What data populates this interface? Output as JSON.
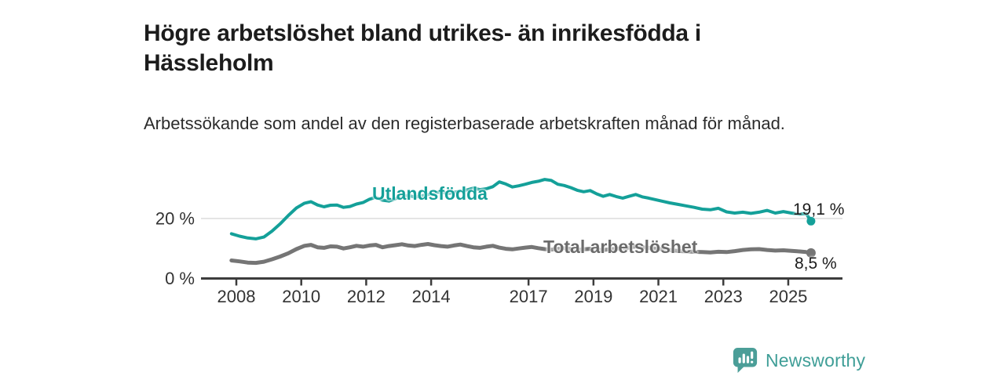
{
  "header": {
    "title": "Högre arbetslöshet bland utrikes- än inrikesfödda i Hässleholm",
    "subtitle": "Arbetssökande som andel av den registerbaserade arbetskraften månad för månad."
  },
  "chart_data": {
    "type": "line",
    "title": "Högre arbetslöshet bland utrikes- än inrikesfödda i Hässleholm",
    "subtitle": "Arbetssökande som andel av den registerbaserade arbetskraften månad för månad.",
    "unit": "%",
    "ylim": [
      0,
      35
    ],
    "grid": "horizontal-at-20-only",
    "legend_position": "inline-labels-on-lines",
    "y_axis": {
      "ticks": [
        {
          "value": 0,
          "label": "0 %"
        },
        {
          "value": 20,
          "label": "20 %"
        }
      ]
    },
    "x_axis": {
      "ticks": [
        {
          "year": 2008,
          "label": "2008"
        },
        {
          "year": 2010,
          "label": "2010"
        },
        {
          "year": 2012,
          "label": "2012"
        },
        {
          "year": 2014,
          "label": "2014"
        },
        {
          "year": 2017,
          "label": "2017"
        },
        {
          "year": 2019,
          "label": "2019"
        },
        {
          "year": 2021,
          "label": "2021"
        },
        {
          "year": 2023,
          "label": "2023"
        },
        {
          "year": 2025,
          "label": "2025"
        }
      ]
    },
    "series": [
      {
        "name": "Utlandsfödda",
        "color": "#14a099",
        "end_label": "19,1 %",
        "end_value": 19.1,
        "points": [
          [
            2007.85,
            14.9
          ],
          [
            2008.1,
            14.1
          ],
          [
            2008.35,
            13.5
          ],
          [
            2008.6,
            13.2
          ],
          [
            2008.85,
            13.8
          ],
          [
            2009.1,
            15.8
          ],
          [
            2009.35,
            18.2
          ],
          [
            2009.6,
            21.0
          ],
          [
            2009.85,
            23.5
          ],
          [
            2010.1,
            25.1
          ],
          [
            2010.3,
            25.6
          ],
          [
            2010.5,
            24.5
          ],
          [
            2010.7,
            23.9
          ],
          [
            2010.9,
            24.4
          ],
          [
            2011.1,
            24.5
          ],
          [
            2011.3,
            23.7
          ],
          [
            2011.5,
            24.0
          ],
          [
            2011.7,
            24.8
          ],
          [
            2011.9,
            25.3
          ],
          [
            2012.1,
            26.4
          ],
          [
            2012.3,
            27.1
          ],
          [
            2012.5,
            26.1
          ],
          [
            2012.7,
            25.8
          ],
          [
            2012.9,
            26.6
          ],
          [
            2013.1,
            27.2
          ],
          [
            2013.3,
            27.7
          ],
          [
            2013.5,
            27.1
          ],
          [
            2013.7,
            27.5
          ],
          [
            2013.9,
            28.0
          ],
          [
            2014.1,
            28.5
          ],
          [
            2014.3,
            28.9
          ],
          [
            2014.5,
            28.3
          ],
          [
            2014.7,
            28.7
          ],
          [
            2014.9,
            29.1
          ],
          [
            2015.1,
            29.5
          ],
          [
            2015.3,
            30.1
          ],
          [
            2015.5,
            29.6
          ],
          [
            2015.7,
            29.9
          ],
          [
            2015.9,
            30.6
          ],
          [
            2016.1,
            32.2
          ],
          [
            2016.3,
            31.5
          ],
          [
            2016.5,
            30.5
          ],
          [
            2016.7,
            30.9
          ],
          [
            2016.9,
            31.4
          ],
          [
            2017.1,
            32.0
          ],
          [
            2017.3,
            32.4
          ],
          [
            2017.5,
            33.0
          ],
          [
            2017.7,
            32.7
          ],
          [
            2017.9,
            31.4
          ],
          [
            2018.1,
            31.0
          ],
          [
            2018.3,
            30.3
          ],
          [
            2018.5,
            29.4
          ],
          [
            2018.7,
            28.9
          ],
          [
            2018.9,
            29.3
          ],
          [
            2019.1,
            28.2
          ],
          [
            2019.3,
            27.4
          ],
          [
            2019.5,
            28.0
          ],
          [
            2019.7,
            27.3
          ],
          [
            2019.9,
            26.8
          ],
          [
            2020.1,
            27.4
          ],
          [
            2020.3,
            28.0
          ],
          [
            2020.5,
            27.2
          ],
          [
            2020.7,
            26.8
          ],
          [
            2020.9,
            26.3
          ],
          [
            2021.1,
            25.8
          ],
          [
            2021.35,
            25.2
          ],
          [
            2021.6,
            24.7
          ],
          [
            2021.85,
            24.2
          ],
          [
            2022.1,
            23.7
          ],
          [
            2022.35,
            23.1
          ],
          [
            2022.6,
            22.9
          ],
          [
            2022.85,
            23.4
          ],
          [
            2023.1,
            22.2
          ],
          [
            2023.35,
            21.8
          ],
          [
            2023.6,
            22.1
          ],
          [
            2023.85,
            21.7
          ],
          [
            2024.1,
            22.1
          ],
          [
            2024.35,
            22.7
          ],
          [
            2024.6,
            21.8
          ],
          [
            2024.85,
            22.3
          ],
          [
            2025.1,
            21.8
          ],
          [
            2025.35,
            21.4
          ],
          [
            2025.55,
            21.7
          ],
          [
            2025.7,
            19.1
          ]
        ]
      },
      {
        "name": "Total arbetslöshet",
        "color": "#757575",
        "end_label": "8,5 %",
        "end_value": 8.5,
        "points": [
          [
            2007.85,
            6.0
          ],
          [
            2008.1,
            5.7
          ],
          [
            2008.35,
            5.3
          ],
          [
            2008.6,
            5.2
          ],
          [
            2008.85,
            5.6
          ],
          [
            2009.1,
            6.4
          ],
          [
            2009.35,
            7.3
          ],
          [
            2009.6,
            8.4
          ],
          [
            2009.85,
            9.8
          ],
          [
            2010.1,
            10.9
          ],
          [
            2010.3,
            11.2
          ],
          [
            2010.5,
            10.4
          ],
          [
            2010.7,
            10.2
          ],
          [
            2010.9,
            10.7
          ],
          [
            2011.1,
            10.6
          ],
          [
            2011.3,
            10.0
          ],
          [
            2011.5,
            10.4
          ],
          [
            2011.7,
            10.9
          ],
          [
            2011.9,
            10.6
          ],
          [
            2012.1,
            11.0
          ],
          [
            2012.3,
            11.2
          ],
          [
            2012.5,
            10.4
          ],
          [
            2012.7,
            10.8
          ],
          [
            2012.9,
            11.1
          ],
          [
            2013.1,
            11.4
          ],
          [
            2013.3,
            11.0
          ],
          [
            2013.5,
            10.8
          ],
          [
            2013.7,
            11.2
          ],
          [
            2013.9,
            11.5
          ],
          [
            2014.1,
            11.1
          ],
          [
            2014.3,
            10.8
          ],
          [
            2014.5,
            10.6
          ],
          [
            2014.7,
            11.0
          ],
          [
            2014.9,
            11.3
          ],
          [
            2015.1,
            10.8
          ],
          [
            2015.3,
            10.4
          ],
          [
            2015.5,
            10.2
          ],
          [
            2015.7,
            10.6
          ],
          [
            2015.9,
            10.9
          ],
          [
            2016.1,
            10.3
          ],
          [
            2016.3,
            9.9
          ],
          [
            2016.5,
            9.7
          ],
          [
            2016.7,
            10.0
          ],
          [
            2016.9,
            10.3
          ],
          [
            2017.1,
            10.5
          ],
          [
            2017.3,
            10.1
          ],
          [
            2017.5,
            9.8
          ],
          [
            2017.7,
            9.6
          ],
          [
            2017.9,
            9.9
          ],
          [
            2018.1,
            10.1
          ],
          [
            2018.3,
            9.8
          ],
          [
            2018.5,
            9.5
          ],
          [
            2018.7,
            9.7
          ],
          [
            2018.9,
            9.9
          ],
          [
            2019.1,
            9.7
          ],
          [
            2019.3,
            9.5
          ],
          [
            2019.5,
            9.7
          ],
          [
            2019.7,
            9.9
          ],
          [
            2019.9,
            10.0
          ],
          [
            2020.1,
            10.3
          ],
          [
            2020.3,
            10.7
          ],
          [
            2020.5,
            10.4
          ],
          [
            2020.7,
            10.2
          ],
          [
            2020.9,
            10.0
          ],
          [
            2021.1,
            9.8
          ],
          [
            2021.35,
            9.5
          ],
          [
            2021.6,
            9.2
          ],
          [
            2021.85,
            9.0
          ],
          [
            2022.1,
            8.9
          ],
          [
            2022.35,
            8.8
          ],
          [
            2022.6,
            8.7
          ],
          [
            2022.85,
            8.9
          ],
          [
            2023.1,
            8.8
          ],
          [
            2023.35,
            9.1
          ],
          [
            2023.6,
            9.5
          ],
          [
            2023.85,
            9.7
          ],
          [
            2024.1,
            9.8
          ],
          [
            2024.35,
            9.5
          ],
          [
            2024.6,
            9.3
          ],
          [
            2024.85,
            9.4
          ],
          [
            2025.1,
            9.2
          ],
          [
            2025.35,
            9.0
          ],
          [
            2025.55,
            8.8
          ],
          [
            2025.7,
            8.5
          ]
        ]
      }
    ],
    "colors": {
      "grid": "#dcdcdc",
      "axis": "#3c3c3c",
      "tick_label": "#333333"
    }
  },
  "footer": {
    "brand": "Newsworthy",
    "brand_color": "#3f9e97",
    "logo_icon": "bar-chart-speech-bubble"
  }
}
